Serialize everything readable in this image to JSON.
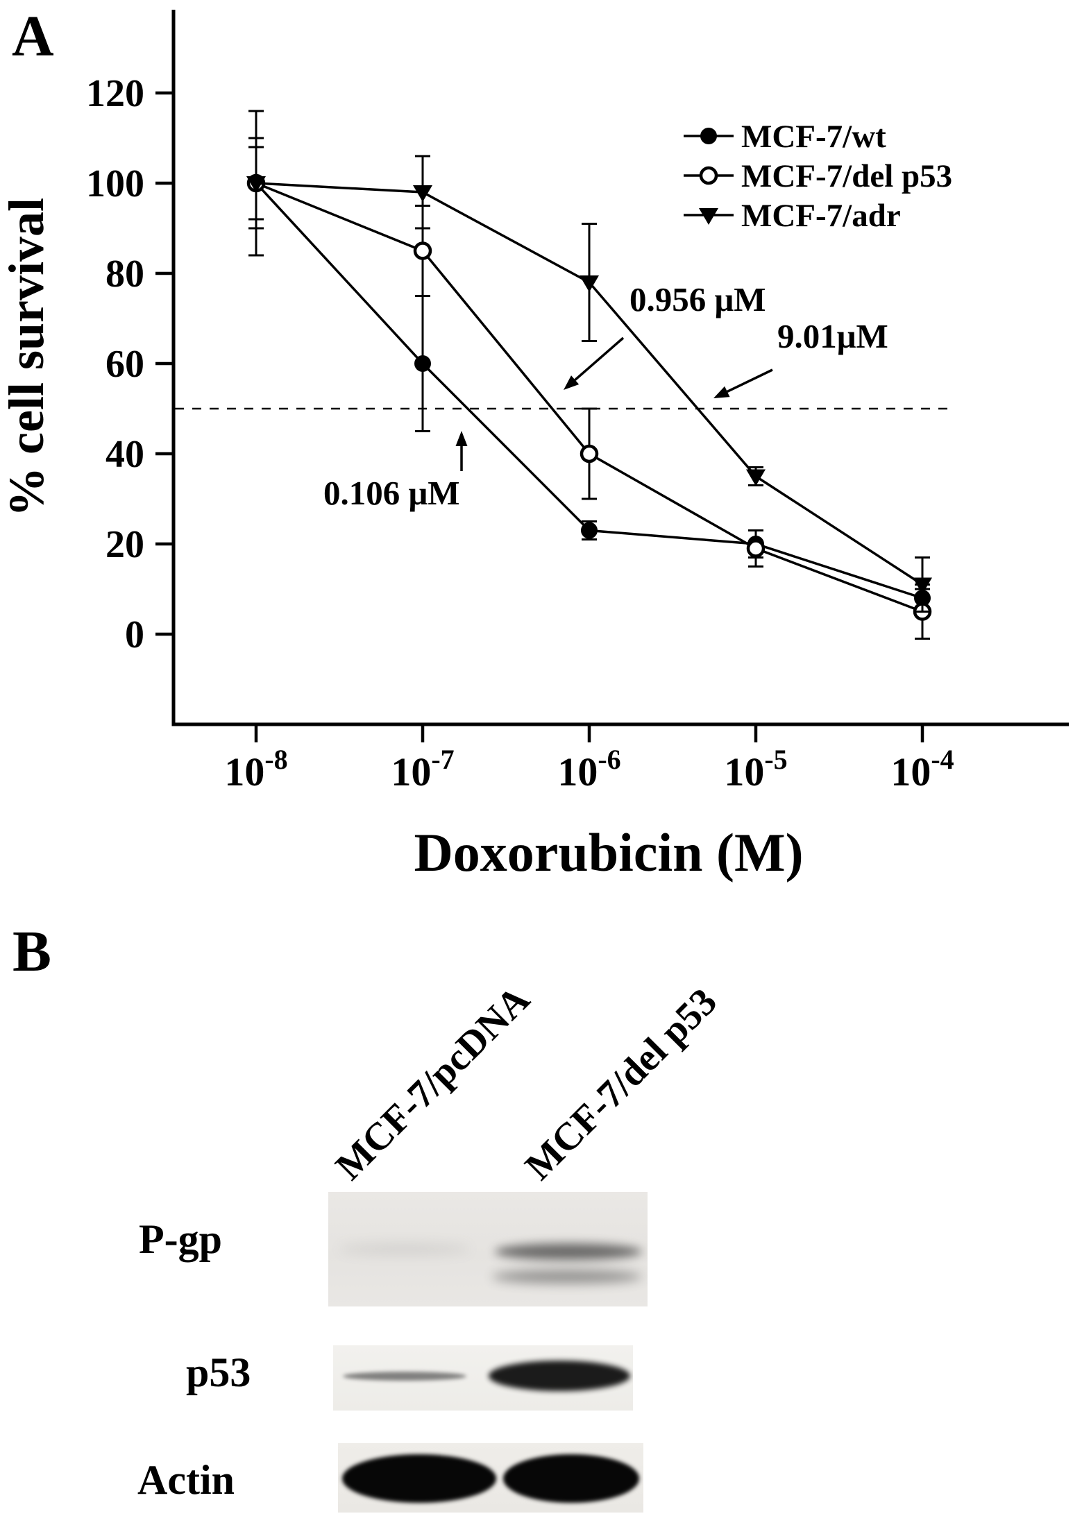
{
  "panelA": {
    "label": "A"
  },
  "chart_data": {
    "type": "line",
    "title": "",
    "xlabel": "Doxorubicin (M)",
    "ylabel": "% cell survival",
    "x_scale": "log",
    "x": [
      1e-08,
      1e-07,
      1e-06,
      1e-05,
      0.0001
    ],
    "x_tick_labels": [
      {
        "base": "10",
        "exp": "-8"
      },
      {
        "base": "10",
        "exp": "-7"
      },
      {
        "base": "10",
        "exp": "-6"
      },
      {
        "base": "10",
        "exp": "-5"
      },
      {
        "base": "10",
        "exp": "-4"
      }
    ],
    "ylim": [
      0,
      120
    ],
    "y_ticks": [
      0,
      20,
      40,
      60,
      80,
      100,
      120
    ],
    "grid": false,
    "legend_position": "upper-right",
    "series": [
      {
        "name": "MCF-7/wt",
        "marker": "filled-circle",
        "values": [
          100,
          60,
          23,
          20,
          8
        ],
        "errors": [
          10,
          15,
          2,
          3,
          2
        ]
      },
      {
        "name": "MCF-7/del p53",
        "marker": "open-circle",
        "values": [
          100,
          85,
          40,
          19,
          5
        ],
        "errors": [
          16,
          10,
          10,
          4,
          6
        ]
      },
      {
        "name": "MCF-7/adr",
        "marker": "filled-triangle-down",
        "values": [
          100,
          98,
          78,
          35,
          11
        ],
        "errors": [
          8,
          8,
          13,
          2,
          6
        ]
      }
    ],
    "reference_line": {
      "y": 50,
      "style": "dashed"
    },
    "annotations": [
      {
        "text": "0.106 μM",
        "refers_to": "MCF-7/wt IC50"
      },
      {
        "text": "0.956 μM",
        "refers_to": "MCF-7/del p53 IC50"
      },
      {
        "text": "9.01μM",
        "refers_to": "MCF-7/adr IC50"
      }
    ]
  },
  "panelB": {
    "label": "B",
    "lanes": [
      "MCF-7/pcDNA",
      "MCF-7/del p53"
    ],
    "rows": [
      {
        "label": "P-gp",
        "band_intensity": {
          "lane1": "very faint",
          "lane2": "strong double band"
        }
      },
      {
        "label": "p53",
        "band_intensity": {
          "lane1": "faint thin",
          "lane2": "strong"
        }
      },
      {
        "label": "Actin",
        "band_intensity": {
          "lane1": "strong",
          "lane2": "strong"
        }
      }
    ]
  }
}
